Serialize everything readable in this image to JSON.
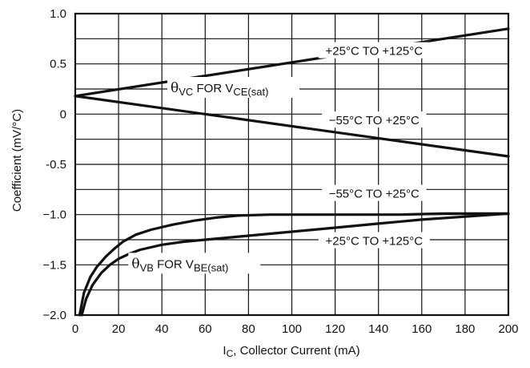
{
  "chart_data": {
    "type": "line",
    "xlabel_main": "I",
    "xlabel_sub": "C",
    "xlabel_rest": ", Collector Current (mA)",
    "ylabel": "Coefficient (mV/°C)",
    "xlim": [
      0,
      200
    ],
    "ylim": [
      -2.0,
      1.0
    ],
    "xticks": [
      {
        "value": 0,
        "label": "0"
      },
      {
        "value": 20,
        "label": "20"
      },
      {
        "value": 40,
        "label": "40"
      },
      {
        "value": 60,
        "label": "60"
      },
      {
        "value": 80,
        "label": "80"
      },
      {
        "value": 100,
        "label": "100"
      },
      {
        "value": 120,
        "label": "120"
      },
      {
        "value": 140,
        "label": "140"
      },
      {
        "value": 160,
        "label": "160"
      },
      {
        "value": 180,
        "label": "180"
      },
      {
        "value": 200,
        "label": "200"
      }
    ],
    "yticks": [
      {
        "value": 1.0,
        "label": "1.0"
      },
      {
        "value": 0.5,
        "label": "0.5"
      },
      {
        "value": 0,
        "label": "0"
      },
      {
        "value": -0.5,
        "label": "-0.5"
      },
      {
        "value": -1.0,
        "label": "−1.0"
      },
      {
        "value": -1.5,
        "label": "−1.5"
      },
      {
        "value": -2.0,
        "label": "−2.0"
      }
    ],
    "y_gridlines": [
      1.0,
      0.75,
      0.5,
      0.25,
      0,
      -0.25,
      -0.5,
      -0.75,
      -1.0,
      -1.25,
      -1.5,
      -1.75,
      -2.0
    ],
    "grid": true,
    "series": [
      {
        "x": [
          0,
          200
        ],
        "y": [
          0.18,
          0.85
        ]
      },
      {
        "x": [
          0,
          200
        ],
        "y": [
          0.18,
          -0.42
        ]
      },
      {
        "x": [
          2,
          4,
          7,
          10,
          14,
          18,
          22,
          28,
          35,
          45,
          55,
          65,
          75,
          90,
          110,
          130,
          150,
          170,
          190,
          200
        ],
        "y": [
          -2.0,
          -1.78,
          -1.62,
          -1.52,
          -1.42,
          -1.34,
          -1.27,
          -1.2,
          -1.15,
          -1.1,
          -1.06,
          -1.03,
          -1.01,
          -1.0,
          -1.0,
          -1.0,
          -1.0,
          -0.99,
          -0.99,
          -0.99
        ]
      },
      {
        "x": [
          3,
          5,
          8,
          12,
          16,
          20,
          25,
          30,
          40,
          50,
          60,
          80,
          100,
          120,
          140,
          160,
          180,
          200
        ],
        "y": [
          -2.0,
          -1.84,
          -1.7,
          -1.58,
          -1.5,
          -1.44,
          -1.39,
          -1.35,
          -1.3,
          -1.27,
          -1.25,
          -1.21,
          -1.17,
          -1.13,
          -1.09,
          -1.05,
          -1.02,
          -0.99
        ]
      }
    ],
    "annotations": [
      {
        "parts": [
          "+25°C TO +125°C"
        ],
        "x": 138,
        "y": 0.62,
        "align": "middle"
      },
      {
        "parts": [
          "−55°C TO +25°C"
        ],
        "x": 138,
        "y": -0.07,
        "align": "middle"
      },
      {
        "parts": [
          "−55°C TO +25°C"
        ],
        "x": 138,
        "y": -0.8,
        "align": "middle"
      },
      {
        "parts": [
          "+25°C TO +125°C"
        ],
        "x": 138,
        "y": -1.27,
        "align": "middle"
      },
      {
        "theta": "θ",
        "theta_sub": "VC",
        "mid": " FOR V",
        "mid_sub": "CE(sat)",
        "x": 44,
        "y": 0.25
      },
      {
        "theta": "θ",
        "theta_sub": "VB",
        "mid": " FOR V",
        "mid_sub": "BE(sat)",
        "x": 26,
        "y": -1.5
      }
    ]
  }
}
